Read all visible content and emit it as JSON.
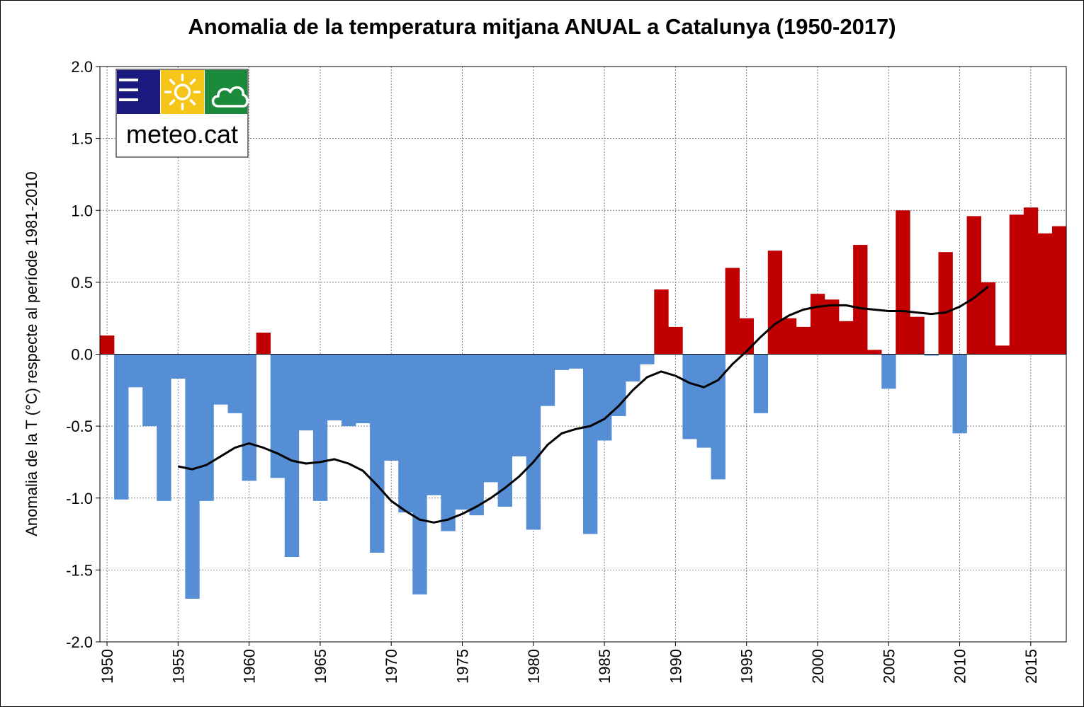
{
  "chart_data": {
    "type": "bar",
    "title": "Anomalia de la temperatura mitjana ANUAL a Catalunya (1950-2017)",
    "ylabel": "Anomalia de la T (°C) respecte al període 1981-2010",
    "xlabel": "",
    "ylim": [
      -2.0,
      2.0
    ],
    "y_ticks": [
      "2.0",
      "1.5",
      "1.0",
      "0.5",
      "0.0",
      "-0.5",
      "-1.0",
      "-1.5",
      "-2.0"
    ],
    "y_tick_values": [
      2.0,
      1.5,
      1.0,
      0.5,
      0.0,
      -0.5,
      -1.0,
      -1.5,
      -2.0
    ],
    "x_ticks": [
      "1950",
      "1955",
      "1960",
      "1965",
      "1970",
      "1975",
      "1980",
      "1985",
      "1990",
      "1995",
      "2000",
      "2005",
      "2010",
      "2015"
    ],
    "x_tick_values": [
      1950,
      1955,
      1960,
      1965,
      1970,
      1975,
      1980,
      1985,
      1990,
      1995,
      2000,
      2005,
      2010,
      2015
    ],
    "grid": true,
    "colors": {
      "positive": "#C00000",
      "negative": "#558ED5",
      "smooth": "#000000"
    },
    "years": [
      1950,
      1951,
      1952,
      1953,
      1954,
      1955,
      1956,
      1957,
      1958,
      1959,
      1960,
      1961,
      1962,
      1963,
      1964,
      1965,
      1966,
      1967,
      1968,
      1969,
      1970,
      1971,
      1972,
      1973,
      1974,
      1975,
      1976,
      1977,
      1978,
      1979,
      1980,
      1981,
      1982,
      1983,
      1984,
      1985,
      1986,
      1987,
      1988,
      1989,
      1990,
      1991,
      1992,
      1993,
      1994,
      1995,
      1996,
      1997,
      1998,
      1999,
      2000,
      2001,
      2002,
      2003,
      2004,
      2005,
      2006,
      2007,
      2008,
      2009,
      2010,
      2011,
      2012,
      2013,
      2014,
      2015,
      2016,
      2017
    ],
    "values": [
      0.13,
      -1.01,
      -0.23,
      -0.5,
      -1.02,
      -0.17,
      -1.7,
      -1.02,
      -0.35,
      -0.41,
      -0.88,
      0.15,
      -0.86,
      -1.41,
      -0.53,
      -1.02,
      -0.46,
      -0.5,
      -0.48,
      -1.38,
      -0.74,
      -1.1,
      -1.67,
      -0.98,
      -1.23,
      -1.08,
      -1.12,
      -0.89,
      -1.06,
      -0.71,
      -1.22,
      -0.36,
      -0.11,
      -0.1,
      -1.25,
      -0.6,
      -0.43,
      -0.19,
      -0.07,
      0.45,
      0.19,
      -0.59,
      -0.65,
      -0.87,
      0.6,
      0.25,
      -0.41,
      0.72,
      0.25,
      0.19,
      0.42,
      0.38,
      0.23,
      0.76,
      0.03,
      -0.24,
      1.0,
      0.26,
      -0.01,
      0.71,
      -0.55,
      0.96,
      0.5,
      0.06,
      0.97,
      1.02,
      0.84,
      0.89
    ],
    "smooth_series": {
      "x": [
        1955,
        1956,
        1957,
        1958,
        1959,
        1960,
        1961,
        1962,
        1963,
        1964,
        1965,
        1966,
        1967,
        1968,
        1969,
        1970,
        1971,
        1972,
        1973,
        1974,
        1975,
        1976,
        1977,
        1978,
        1979,
        1980,
        1981,
        1982,
        1983,
        1984,
        1985,
        1986,
        1987,
        1988,
        1989,
        1990,
        1991,
        1992,
        1993,
        1994,
        1995,
        1996,
        1997,
        1998,
        1999,
        2000,
        2001,
        2002,
        2003,
        2004,
        2005,
        2006,
        2007,
        2008,
        2009,
        2010,
        2011,
        2012
      ],
      "y": [
        -0.78,
        -0.8,
        -0.77,
        -0.71,
        -0.65,
        -0.62,
        -0.65,
        -0.69,
        -0.74,
        -0.76,
        -0.75,
        -0.73,
        -0.76,
        -0.81,
        -0.91,
        -1.02,
        -1.09,
        -1.15,
        -1.17,
        -1.15,
        -1.11,
        -1.06,
        -1.0,
        -0.93,
        -0.85,
        -0.75,
        -0.63,
        -0.55,
        -0.52,
        -0.5,
        -0.45,
        -0.36,
        -0.25,
        -0.16,
        -0.12,
        -0.15,
        -0.2,
        -0.23,
        -0.18,
        -0.07,
        0.02,
        0.12,
        0.21,
        0.27,
        0.31,
        0.33,
        0.34,
        0.34,
        0.32,
        0.31,
        0.3,
        0.3,
        0.29,
        0.28,
        0.29,
        0.33,
        0.39,
        0.47
      ]
    }
  },
  "logo": {
    "text": "meteo.cat",
    "icons": [
      "menu-icon",
      "sun-icon",
      "cloud-icon"
    ],
    "colors": {
      "blue": "#1A1A7E",
      "yellow": "#F5C518",
      "green": "#1B8A3A"
    }
  }
}
